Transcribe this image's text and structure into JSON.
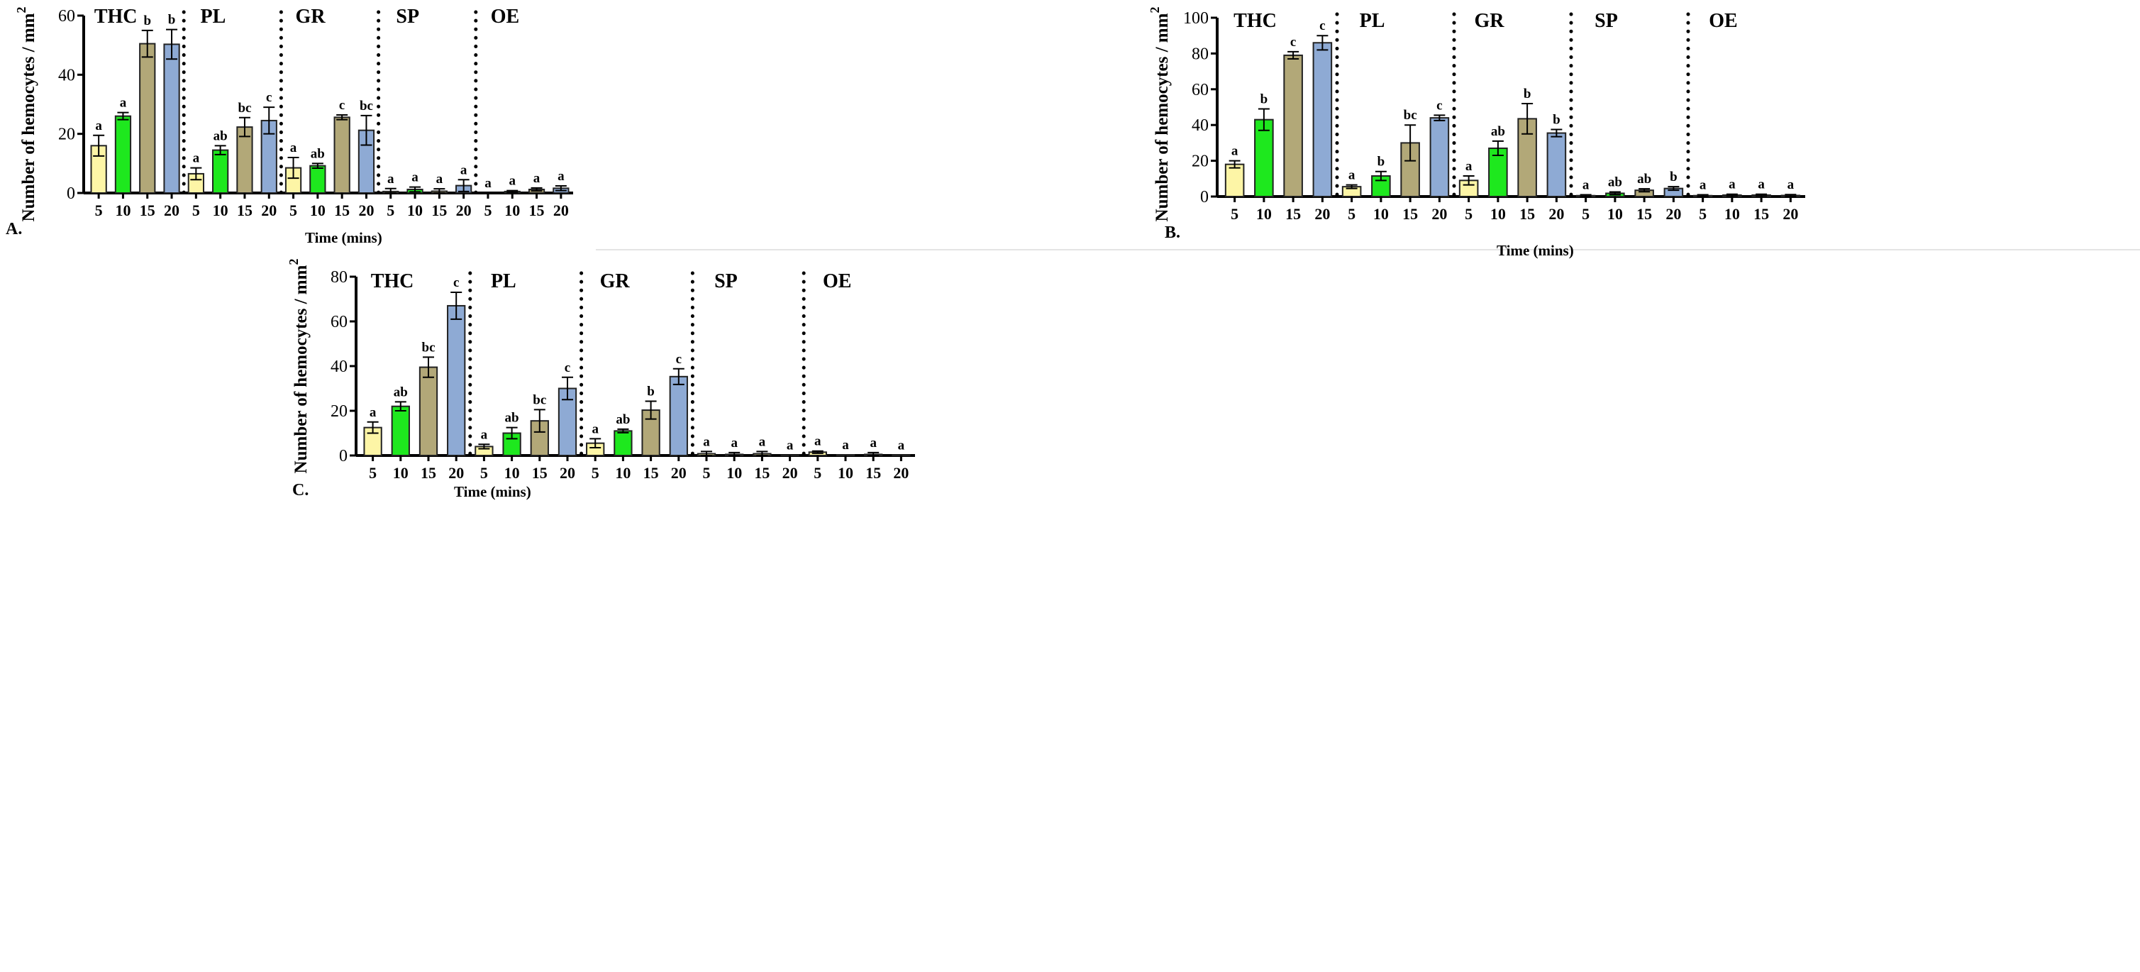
{
  "colors": {
    "5": "#fdf5a6",
    "10": "#1ee81e",
    "15": "#b2a878",
    "20": "#8eaad4"
  },
  "chart_data": [
    {
      "type": "bar",
      "panel": "A.",
      "ylabel": "Number of hemocytes / mm",
      "ylabel_sup": "2",
      "xlabel": "Time (mins)",
      "ylim": [
        0,
        60
      ],
      "yticks": [
        0,
        20,
        40,
        60
      ],
      "categories": [
        "5",
        "10",
        "15",
        "20"
      ],
      "groups": [
        {
          "name": "THC",
          "values": [
            16,
            26,
            50.5,
            50.3
          ],
          "errors": [
            3.5,
            1.2,
            4.5,
            5
          ],
          "letters": [
            "a",
            "a",
            "b",
            "b"
          ]
        },
        {
          "name": "PL",
          "values": [
            6.5,
            14.5,
            22.3,
            24.5
          ],
          "errors": [
            2,
            1.5,
            3.2,
            4.5
          ],
          "letters": [
            "a",
            "ab",
            "bc",
            "c"
          ]
        },
        {
          "name": "GR",
          "values": [
            8.5,
            9.2,
            25.6,
            21.2
          ],
          "errors": [
            3.5,
            0.8,
            0.8,
            5
          ],
          "letters": [
            "a",
            "ab",
            "c",
            "bc"
          ]
        },
        {
          "name": "SP",
          "values": [
            0.5,
            1.2,
            0.6,
            2.5
          ],
          "errors": [
            1,
            0.8,
            0.8,
            2
          ],
          "letters": [
            "a",
            "a",
            "a",
            "a"
          ]
        },
        {
          "name": "OE",
          "values": [
            0,
            0.5,
            1.2,
            1.6
          ],
          "errors": [
            0,
            0.3,
            0.5,
            0.8
          ],
          "letters": [
            "a",
            "a",
            "a",
            "a"
          ]
        }
      ]
    },
    {
      "type": "bar",
      "panel": "B.",
      "ylabel": "Number of hemocytes / mm",
      "ylabel_sup": "2",
      "xlabel": "Time (mins)",
      "ylim": [
        0,
        100
      ],
      "yticks": [
        0,
        20,
        40,
        60,
        80,
        100
      ],
      "categories": [
        "5",
        "10",
        "15",
        "20"
      ],
      "groups": [
        {
          "name": "THC",
          "values": [
            18,
            43,
            79,
            86
          ],
          "errors": [
            2,
            6,
            2,
            4
          ],
          "letters": [
            "a",
            "b",
            "c",
            "c"
          ]
        },
        {
          "name": "PL",
          "values": [
            5.5,
            11.5,
            30,
            44
          ],
          "errors": [
            1,
            2.5,
            10,
            1.5
          ],
          "letters": [
            "a",
            "b",
            "bc",
            "c"
          ]
        },
        {
          "name": "GR",
          "values": [
            9,
            27,
            43.5,
            35.5
          ],
          "errors": [
            2.5,
            4,
            8.5,
            2
          ],
          "letters": [
            "a",
            "ab",
            "b",
            "b"
          ]
        },
        {
          "name": "SP",
          "values": [
            0.5,
            1.8,
            3.5,
            4.5
          ],
          "errors": [
            0.5,
            0.8,
            0.8,
            1
          ],
          "letters": [
            "a",
            "ab",
            "ab",
            "b"
          ]
        },
        {
          "name": "OE",
          "values": [
            0.5,
            0.8,
            0.8,
            0.6
          ],
          "errors": [
            0.5,
            0.5,
            0.5,
            0.5
          ],
          "letters": [
            "a",
            "a",
            "a",
            "a"
          ]
        }
      ]
    },
    {
      "type": "bar",
      "panel": "C.",
      "ylabel": "Number of hemocytes / mm",
      "ylabel_sup": "2",
      "xlabel": "Time (mins)",
      "ylim": [
        0,
        80
      ],
      "yticks": [
        0,
        20,
        40,
        60,
        80
      ],
      "categories": [
        "5",
        "10",
        "15",
        "20"
      ],
      "groups": [
        {
          "name": "THC",
          "values": [
            12.5,
            22,
            39.5,
            67
          ],
          "errors": [
            2.5,
            2,
            4.5,
            6
          ],
          "letters": [
            "a",
            "ab",
            "bc",
            "c"
          ]
        },
        {
          "name": "PL",
          "values": [
            4,
            10,
            15.5,
            30
          ],
          "errors": [
            1,
            2.5,
            5,
            5
          ],
          "letters": [
            "a",
            "ab",
            "bc",
            "c"
          ]
        },
        {
          "name": "GR",
          "values": [
            5.5,
            11,
            20.3,
            35.3
          ],
          "errors": [
            2,
            0.8,
            4,
            3.5
          ],
          "letters": [
            "a",
            "ab",
            "b",
            "c"
          ]
        },
        {
          "name": "SP",
          "values": [
            0.8,
            0.5,
            0.8,
            0.1
          ],
          "errors": [
            1,
            0.8,
            1,
            0
          ],
          "letters": [
            "a",
            "a",
            "a",
            "a"
          ]
        },
        {
          "name": "OE",
          "values": [
            1.5,
            0.3,
            0.5,
            0.2
          ],
          "errors": [
            0.5,
            0,
            0.8,
            0
          ],
          "letters": [
            "a",
            "a",
            "a",
            "a"
          ]
        }
      ]
    }
  ]
}
